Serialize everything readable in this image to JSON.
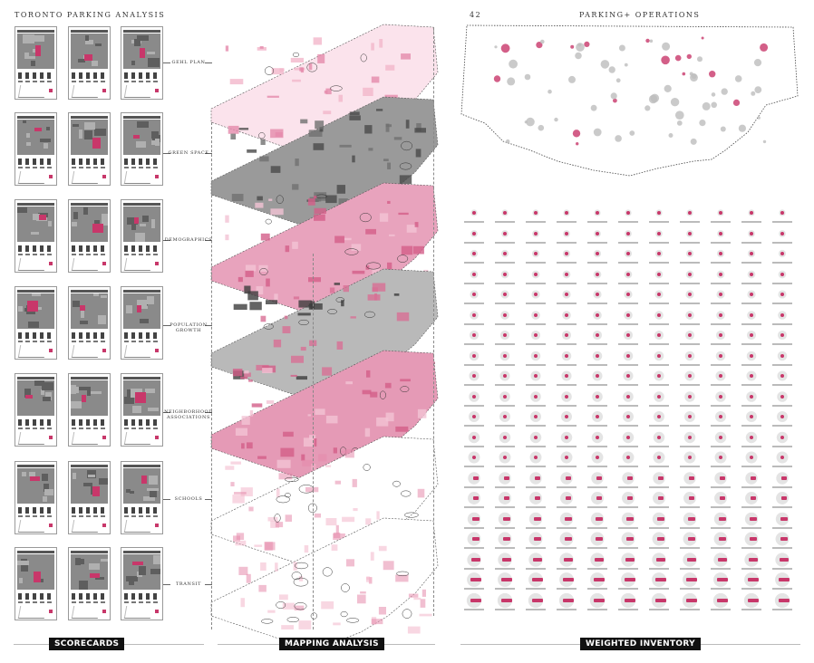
{
  "left_title": "TORONTO PARKING ANALYSIS",
  "page_number": "42",
  "right_title": "PARKING+ OPERATIONS",
  "layers": [
    {
      "label": "GEHL PLAN"
    },
    {
      "label": "GREEN SPACE"
    },
    {
      "label": "DEMOGRAPHICS"
    },
    {
      "label": "POPULATION GROWTH"
    },
    {
      "label": "NEIGHBORHOOD ASSOCIATIONS"
    },
    {
      "label": "SCHOOLS"
    },
    {
      "label": "TRANSIT"
    }
  ],
  "sections": {
    "scorecards": "SCORECARDS",
    "mapping": "MAPPING ANALYSIS",
    "inventory": "WEIGHTED INVENTORY"
  },
  "colors": {
    "accent": "#c8376a",
    "ink": "#222222",
    "gray": "#8a8a8a"
  }
}
